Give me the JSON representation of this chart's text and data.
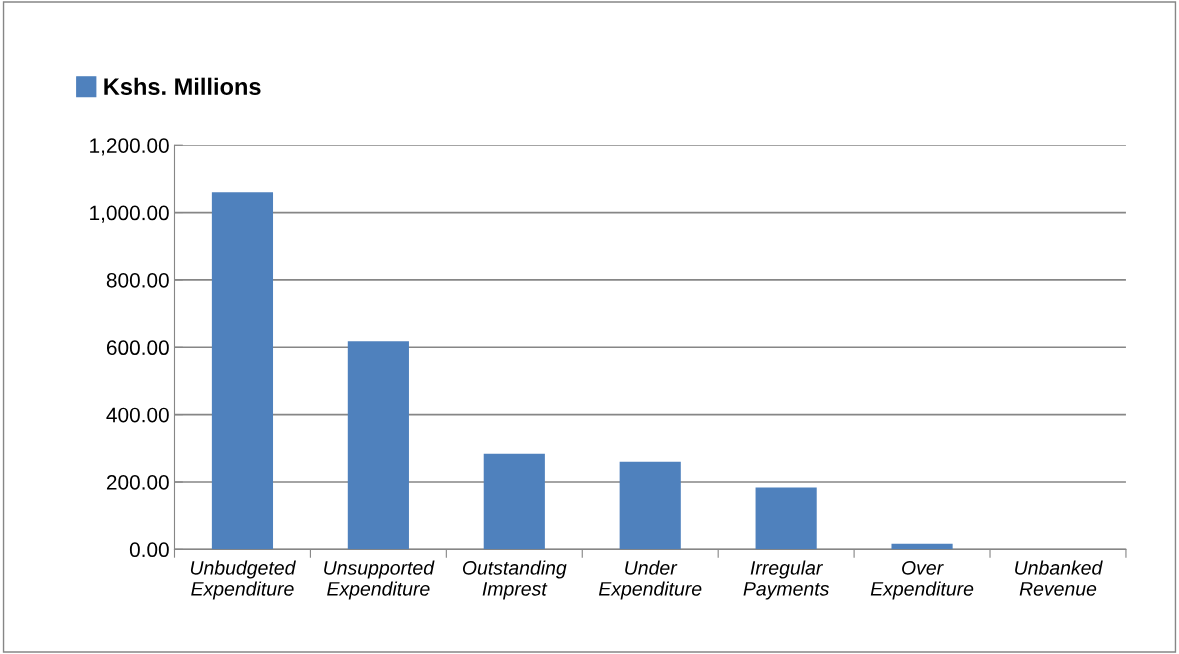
{
  "chart_data": {
    "type": "bar",
    "categories": [
      "Unbudgeted\nExpenditure",
      "Unsupported\nExpenditure",
      "Outstanding\nImprest",
      "Under\nExpenditure",
      "Irregular\nPayments",
      "Over\nExpenditure",
      "Unbanked\nRevenue"
    ],
    "series": [
      {
        "name": "Kshs. Millions",
        "color": "#4f81bd",
        "values": [
          1060,
          618,
          284,
          260,
          184,
          17,
          0
        ]
      }
    ],
    "ylim": [
      0,
      1200
    ],
    "yticks": [
      {
        "value": 0,
        "label": "0.00"
      },
      {
        "value": 200,
        "label": "200.00"
      },
      {
        "value": 400,
        "label": "400.00"
      },
      {
        "value": 600,
        "label": "600.00"
      },
      {
        "value": 800,
        "label": "800.00"
      },
      {
        "value": 1000,
        "label": "1,000.00"
      },
      {
        "value": 1200,
        "label": "1,200.00"
      }
    ],
    "grid": "y",
    "legend": "top left"
  }
}
